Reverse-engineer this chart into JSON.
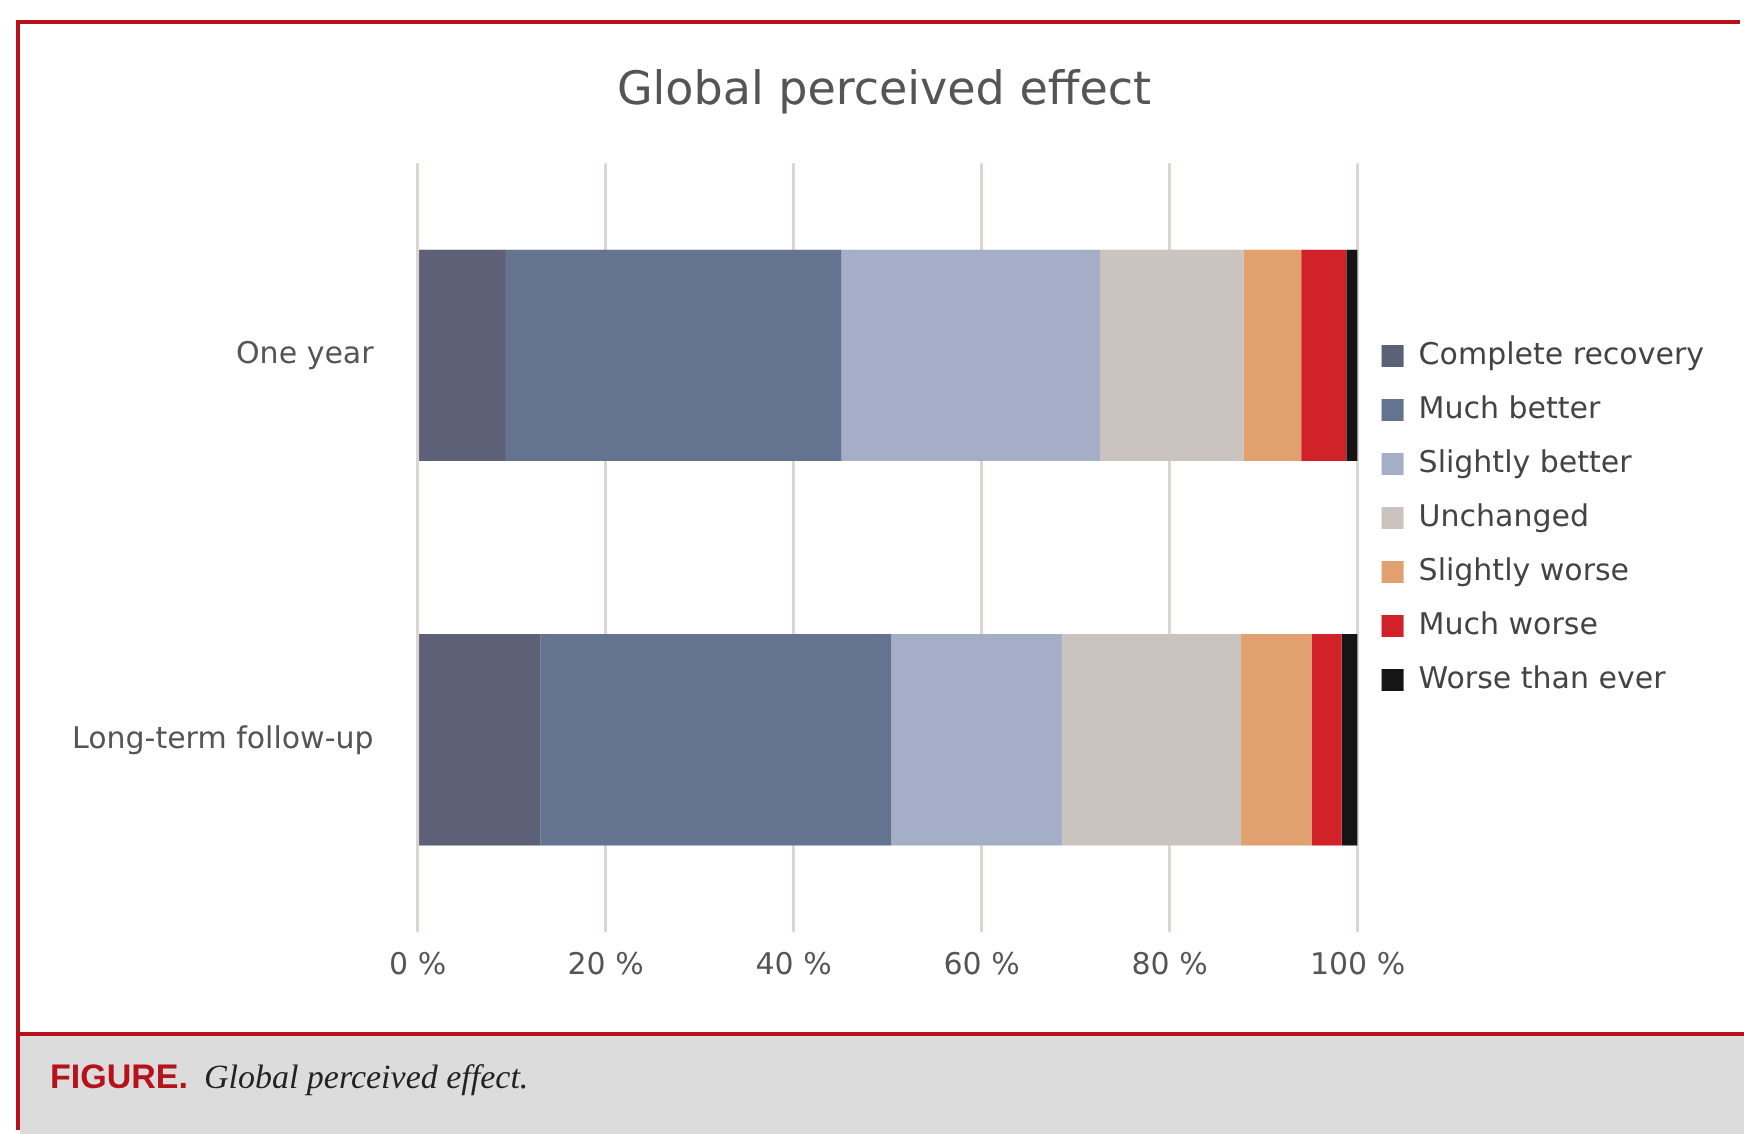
{
  "chart_data": {
    "type": "bar",
    "orientation": "horizontal",
    "stacked": true,
    "title": "Global perceived effect",
    "categories": [
      "One year",
      "Long-term follow-up"
    ],
    "series": [
      {
        "name": "Complete recovery",
        "color": "#5c6177",
        "values": [
          9.4,
          13.1
        ]
      },
      {
        "name": "Much better",
        "color": "#64738f",
        "values": [
          35.7,
          37.3
        ]
      },
      {
        "name": "Slightly better",
        "color": "#a4afc7",
        "values": [
          27.5,
          18.2
        ]
      },
      {
        "name": "Unchanged",
        "color": "#cbc3c0",
        "values": [
          15.3,
          19.0
        ]
      },
      {
        "name": "Slightly worse",
        "color": "#e0a06f",
        "values": [
          6.1,
          7.5
        ]
      },
      {
        "name": "Much worse",
        "color": "#d02228",
        "values": [
          4.8,
          3.2
        ]
      },
      {
        "name": "Worse than ever",
        "color": "#151515",
        "values": [
          1.2,
          1.7
        ]
      }
    ],
    "xlim": [
      0,
      100
    ],
    "xticks": [
      {
        "value": 0,
        "label": "0 %"
      },
      {
        "value": 20,
        "label": "20 %"
      },
      {
        "value": 40,
        "label": "40 %"
      },
      {
        "value": 60,
        "label": "60 %"
      },
      {
        "value": 80,
        "label": "80 %"
      },
      {
        "value": 100,
        "label": "100 %"
      }
    ],
    "grid": "x",
    "legend": "right",
    "annotations": [
      "FIGURE.",
      "Global perceived effect."
    ]
  }
}
